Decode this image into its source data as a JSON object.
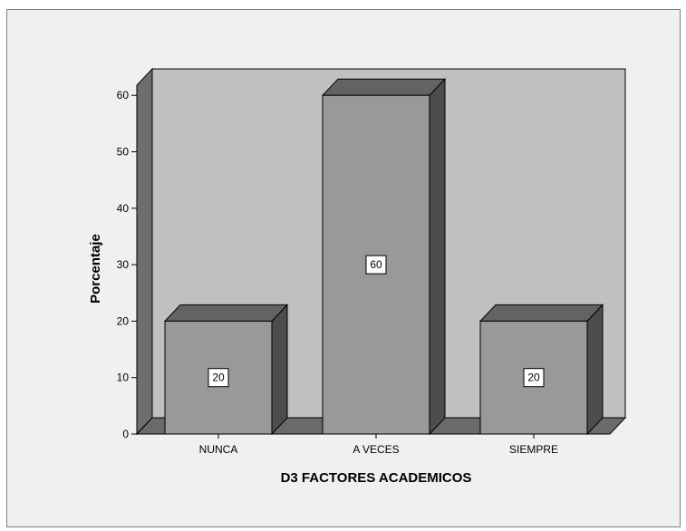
{
  "chart_data": {
    "type": "bar",
    "categories": [
      "NUNCA",
      "A VECES",
      "SIEMPRE"
    ],
    "values": [
      20,
      60,
      20
    ],
    "data_labels": [
      "20",
      "60",
      "20"
    ],
    "xlabel": "D3 FACTORES ACADEMICOS",
    "ylabel": "Porcentaje",
    "ylim": [
      0,
      65
    ],
    "yticks": [
      0,
      10,
      20,
      30,
      40,
      50,
      60
    ],
    "grid": false,
    "style": "3d",
    "colors": {
      "frame_bg": "#f0f0f0",
      "plot_back": "#c0c0c0",
      "wall": "#6e6e6e",
      "floor": "#6a6a6a",
      "bar_front": "#999999",
      "bar_top": "#636363",
      "bar_side": "#4d4d4d"
    }
  }
}
